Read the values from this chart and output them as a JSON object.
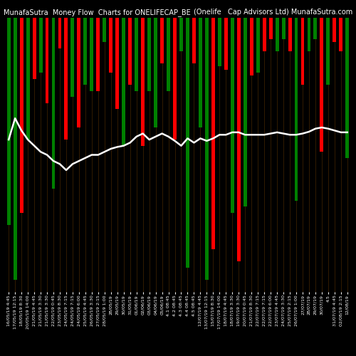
{
  "title_left": "MunafaSutra  Money Flow  Charts for ONELIFECAP_BE",
  "title_right": "(Onelife   Cap Advisors Ltd) MunafaSutra.com",
  "background_color": "#000000",
  "bar_colors": [
    "green",
    "green",
    "red",
    "green",
    "red",
    "green",
    "red",
    "green",
    "red",
    "red",
    "green",
    "red",
    "green",
    "green",
    "red",
    "green",
    "red",
    "red",
    "green",
    "red",
    "green",
    "red",
    "green",
    "green",
    "red",
    "green",
    "red",
    "green",
    "green",
    "red",
    "green",
    "green",
    "red",
    "green",
    "red",
    "green",
    "red",
    "green",
    "red",
    "green",
    "red",
    "red",
    "green",
    "green",
    "red",
    "green",
    "red",
    "green",
    "green",
    "red",
    "green",
    "red",
    "red",
    "green"
  ],
  "bar_heights": [
    340,
    430,
    320,
    200,
    100,
    90,
    140,
    280,
    50,
    200,
    130,
    180,
    110,
    120,
    120,
    40,
    90,
    150,
    210,
    110,
    120,
    210,
    120,
    180,
    75,
    120,
    200,
    55,
    410,
    75,
    180,
    430,
    380,
    80,
    85,
    320,
    400,
    310,
    95,
    90,
    55,
    35,
    55,
    35,
    55,
    300,
    110,
    55,
    35,
    220,
    110,
    40,
    55,
    230
  ],
  "line_values": [
    250,
    285,
    265,
    250,
    240,
    230,
    225,
    215,
    210,
    200,
    210,
    215,
    220,
    225,
    225,
    230,
    235,
    238,
    240,
    245,
    255,
    260,
    250,
    255,
    260,
    255,
    248,
    240,
    252,
    245,
    252,
    248,
    252,
    258,
    258,
    262,
    262,
    258,
    258,
    258,
    258,
    260,
    262,
    260,
    258,
    258,
    260,
    263,
    268,
    270,
    268,
    265,
    262,
    262
  ],
  "x_labels": [
    "16/05/19 4:45",
    "17/05/19 12:15",
    "18/05/19 8:30",
    "20/05/19 14:00",
    "21/05/19 4:45",
    "21/05/19 3:30",
    "21/05/19 3:30",
    "22/05/19 0:45",
    "23/05/19 8:30",
    "24/05/19 7:15",
    "24/05/19 7:15",
    "24/05/19 6:00",
    "25/05/19 4:45",
    "26/05/19 3:30",
    "27/05/19 2:15",
    "28/05/19 1:00",
    "28/05/19",
    "29/05/19",
    "30/05/19",
    "31/05/19",
    "01/06/19",
    "02/06/19",
    "03/06/19",
    "04/06/19",
    "05/06/19",
    "4.1 08:45",
    "4.2 08:45",
    "4.3 08:45",
    "4.4 08:45",
    "4.5 08:45",
    "12/07/19 4:45",
    "13/07/19 12:15",
    "15/07/19 8:30",
    "17/07/19 14:00",
    "18/07/19 4:45",
    "18/07/19 3:30",
    "19/07/19 3:30",
    "20/07/19 0:45",
    "21/07/19 8:30",
    "22/07/19 7:15",
    "22/07/19 7:15",
    "22/07/19 6:00",
    "23/07/19 4:45",
    "24/07/19 3:30",
    "25/07/19 2:15",
    "26/07/19 1:00",
    "27/07/19",
    "28/07/19",
    "29/07/19",
    "30/07/19",
    "4.5",
    "31/07/19 4:45",
    "02/08/19 2:15",
    "12/08/19"
  ],
  "ylim_max": 450,
  "title_fontsize": 7,
  "label_fontsize": 4.5,
  "line_color": "#ffffff",
  "line_width": 1.8,
  "grid_line_color": "#3a2000",
  "bar_width": 0.55
}
